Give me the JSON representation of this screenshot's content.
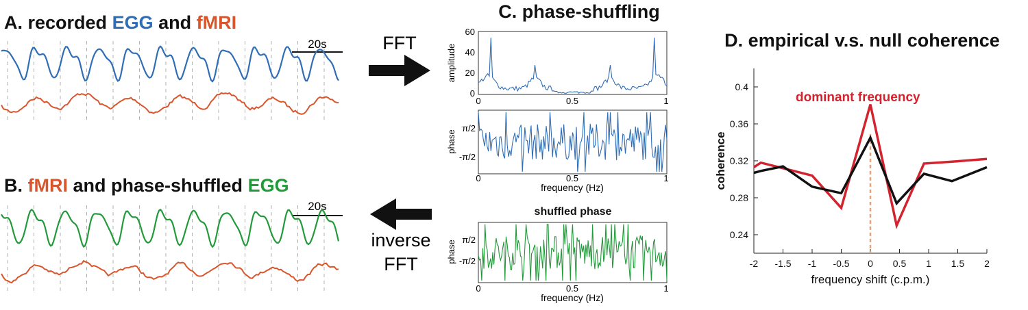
{
  "colors": {
    "egg": "#2f6db5",
    "fmri": "#d9552c",
    "shuffled": "#229a3a",
    "null_line": "#111111",
    "empirical_line": "#d2232e",
    "dominant_marker": "#e8a27a",
    "text": "#111111"
  },
  "panel_a": {
    "prefix": "A. recorded",
    "egg_word": "EGG",
    "and_word": "and",
    "fmri_word": "fMRI",
    "scale_label": "20s"
  },
  "panel_b": {
    "prefix": "B.",
    "fmri_word": "fMRI",
    "middle": "and phase-shuffled",
    "egg_word": "EGG",
    "scale_label": "20s"
  },
  "arrows": {
    "forward_label": "FFT",
    "inverse_label_line1": "inverse",
    "inverse_label_line2": "FFT"
  },
  "panel_c": {
    "title": "C. phase-shuffling",
    "amplitude_ylabel": "amplitude",
    "amplitude_yticks": [
      "60",
      "40",
      "20",
      "0"
    ],
    "phase_ylabel": "phase",
    "phase_yticks": [
      "π/2",
      "-π/2"
    ],
    "xticks": [
      "0",
      "0.5",
      "1"
    ],
    "xlabel": "frequency (Hz)",
    "shuffled_title": "shuffled phase",
    "shuffled_ylabel": "phase",
    "shuffled_yticks": [
      "π/2",
      "-π/2"
    ],
    "shuffled_xticks": [
      "0",
      "0.5",
      "1"
    ],
    "shuffled_xlabel": "frequency (Hz)"
  },
  "panel_d": {
    "title": "D. empirical v.s. null coherence",
    "annotation": "dominant frequency"
  },
  "chart_data": {
    "type": "line",
    "title": "D. empirical v.s. null coherence",
    "xlabel": "frequency shift (c.p.m.)",
    "ylabel": "coherence",
    "xlim": [
      -2,
      2
    ],
    "ylim": [
      0.22,
      0.42
    ],
    "xticks": [
      -2,
      -1.5,
      -1,
      -0.5,
      0,
      0.5,
      1,
      1.5,
      2
    ],
    "yticks": [
      0.24,
      0.28,
      0.32,
      0.36,
      0.4
    ],
    "x": [
      -2,
      -1.88,
      -1.5,
      -1,
      -0.5,
      0,
      0.45,
      0.92,
      1.4,
      2
    ],
    "series": [
      {
        "name": "empirical",
        "color": "#d2232e",
        "values": [
          0.313,
          0.318,
          0.312,
          0.304,
          0.269,
          0.381,
          0.25,
          0.317,
          0.319,
          0.322
        ]
      },
      {
        "name": "null",
        "color": "#111111",
        "values": [
          0.307,
          0.309,
          0.314,
          0.292,
          0.285,
          0.345,
          0.274,
          0.306,
          0.298,
          0.313
        ]
      }
    ],
    "annotation": {
      "text": "dominant frequency",
      "x": 0
    }
  }
}
